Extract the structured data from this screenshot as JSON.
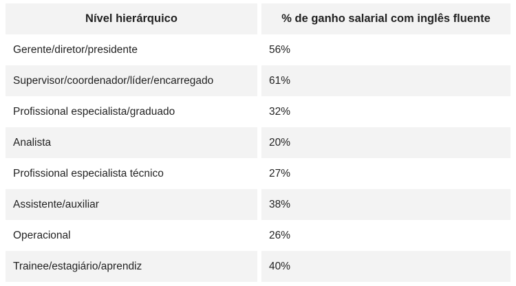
{
  "table": {
    "headers": {
      "level": "Nível hierárquico",
      "gain": "% de ganho salarial com inglês fluente"
    },
    "rows": [
      {
        "level": "Gerente/diretor/presidente",
        "gain": "56%"
      },
      {
        "level": "Supervisor/coordenador/líder/encarregado",
        "gain": "61%"
      },
      {
        "level": "Profissional especialista/graduado",
        "gain": "32%"
      },
      {
        "level": "Analista",
        "gain": "20%"
      },
      {
        "level": "Profissional especialista técnico",
        "gain": "27%"
      },
      {
        "level": "Assistente/auxiliar",
        "gain": "38%"
      },
      {
        "level": "Operacional",
        "gain": "26%"
      },
      {
        "level": "Trainee/estagiário/aprendiz",
        "gain": "40%"
      }
    ]
  }
}
